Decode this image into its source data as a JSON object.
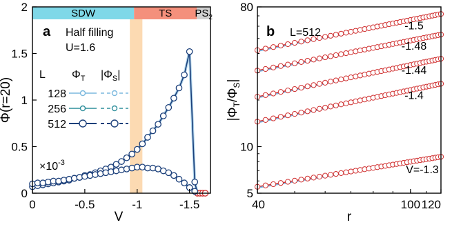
{
  "chart_data": [
    {
      "panel": "a",
      "type": "line",
      "xlabel": "V",
      "ylabel": "Φ(r=20)",
      "xlim": [
        0,
        -1.7
      ],
      "ylim": [
        0,
        2
      ],
      "x_ticks": [
        "0",
        "-0.5",
        "-1",
        "-1.5"
      ],
      "x_tick_values": [
        0,
        -0.5,
        -1,
        -1.5
      ],
      "y_ticks": [
        "0",
        "0.5",
        "1",
        "1.5",
        "2"
      ],
      "y_tick_values": [
        0,
        0.5,
        1,
        1.5,
        2
      ],
      "regions": [
        {
          "label": "SDW",
          "from": 0,
          "to": -0.97,
          "color": "#7fd8e8"
        },
        {
          "label": "TS",
          "from": -0.97,
          "to": -1.57,
          "color": "#f4907c"
        },
        {
          "label": "PS",
          "label_sub": "2",
          "from": -1.57,
          "to": -1.7,
          "color": "#d0d0d0"
        }
      ],
      "crossover_band": {
        "from": -0.93,
        "to": -1.05,
        "color": "#fbd3a4"
      },
      "annotations": [
        "Half filling",
        "U=1.6"
      ],
      "scale_note": "×10",
      "scale_note_exp": "-3",
      "legend_header": [
        "L",
        "Φ",
        "T",
        "|Φ",
        "S",
        "|"
      ],
      "legend": [
        {
          "L": "128",
          "color": "#7ab8de"
        },
        {
          "L": "256",
          "color": "#2f8f9c"
        },
        {
          "L": "512",
          "color": "#1b3f7a"
        }
      ],
      "series": [
        {
          "name": "Φ_T (L=512)",
          "x": [
            0,
            -0.05,
            -0.1,
            -0.15,
            -0.2,
            -0.25,
            -0.3,
            -0.35,
            -0.4,
            -0.45,
            -0.5,
            -0.55,
            -0.6,
            -0.65,
            -0.7,
            -0.75,
            -0.8,
            -0.85,
            -0.9,
            -0.95,
            -1.0,
            -1.05,
            -1.1,
            -1.15,
            -1.2,
            -1.25,
            -1.3,
            -1.35,
            -1.4,
            -1.45,
            -1.5,
            -1.55,
            -1.575,
            -1.6,
            -1.625,
            -1.65
          ],
          "y": [
            0.07,
            0.08,
            0.09,
            0.1,
            0.11,
            0.12,
            0.13,
            0.14,
            0.16,
            0.17,
            0.19,
            0.2,
            0.22,
            0.24,
            0.26,
            0.28,
            0.31,
            0.34,
            0.38,
            0.42,
            0.47,
            0.53,
            0.6,
            0.67,
            0.74,
            0.83,
            0.92,
            1.02,
            1.13,
            1.27,
            1.52,
            0.12,
            0.0,
            0.0,
            0.0,
            0.0
          ]
        },
        {
          "name": "|Φ_S| (L=512)",
          "x": [
            0,
            -0.05,
            -0.1,
            -0.15,
            -0.2,
            -0.25,
            -0.3,
            -0.35,
            -0.4,
            -0.45,
            -0.5,
            -0.55,
            -0.6,
            -0.65,
            -0.7,
            -0.75,
            -0.8,
            -0.85,
            -0.9,
            -0.95,
            -1.0,
            -1.05,
            -1.1,
            -1.15,
            -1.2,
            -1.25,
            -1.3,
            -1.35,
            -1.4,
            -1.45,
            -1.5,
            -1.55
          ],
          "y": [
            0.1,
            0.11,
            0.11,
            0.12,
            0.13,
            0.13,
            0.14,
            0.15,
            0.16,
            0.17,
            0.18,
            0.19,
            0.2,
            0.21,
            0.22,
            0.23,
            0.24,
            0.25,
            0.26,
            0.27,
            0.28,
            0.28,
            0.27,
            0.27,
            0.26,
            0.24,
            0.22,
            0.19,
            0.15,
            0.11,
            0.06,
            0.02
          ]
        }
      ]
    },
    {
      "panel": "b",
      "type": "line",
      "xlabel": "r",
      "ylabel_parts": [
        "|Φ",
        "T",
        "/Φ",
        "S",
        "|"
      ],
      "xscale": "log",
      "yscale": "log",
      "xlim": [
        40,
        120
      ],
      "ylim": [
        5,
        80
      ],
      "x_ticks": [
        "40",
        "100",
        "120"
      ],
      "x_tick_values": [
        40,
        100,
        120
      ],
      "y_ticks": [
        "5",
        "10",
        "80"
      ],
      "y_tick_values": [
        5,
        10,
        80
      ],
      "annotation": "L=512",
      "series": [
        {
          "name": "-1.5",
          "label": "-1.5",
          "x": [
            40,
            120
          ],
          "y": [
            42,
            72
          ]
        },
        {
          "name": "-1.48",
          "label": "-1.48",
          "x": [
            40,
            120
          ],
          "y": [
            31,
            53
          ]
        },
        {
          "name": "-1.44",
          "label": "-1.44",
          "x": [
            40,
            120
          ],
          "y": [
            21,
            37
          ]
        },
        {
          "name": "-1.4",
          "label": "-1.4",
          "x": [
            40,
            120
          ],
          "y": [
            14.5,
            25.5
          ]
        },
        {
          "name": "-1.3",
          "label": "V=-1.3",
          "x": [
            40,
            120
          ],
          "y": [
            5.5,
            8.6
          ]
        }
      ]
    }
  ],
  "colors": {
    "fit_red": "#d03030",
    "fit_blue": "#6fb4e4",
    "marker_face": "#ffffff",
    "dark_navy": "#1b3f7a"
  }
}
